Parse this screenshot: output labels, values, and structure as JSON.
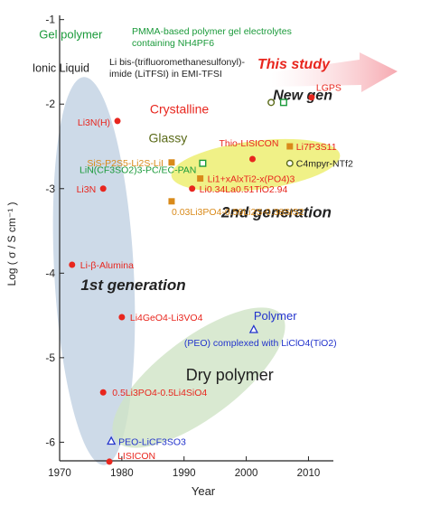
{
  "chart_data": {
    "type": "scatter",
    "xlabel": "Year",
    "ylabel": "Log ( σ / S cm⁻¹ )",
    "xlim": [
      1970,
      2014
    ],
    "ylim": [
      -6.22,
      -0.95
    ],
    "xticks": [
      1970,
      1980,
      1990,
      2000,
      2010
    ],
    "yticks": [
      -1,
      -2,
      -3,
      -4,
      -5,
      -6
    ],
    "grid": false,
    "colors": {
      "red": "#e8261e",
      "orange": "#d98a1a",
      "green": "#1a9a3a",
      "olive": "#5a6a18",
      "blue": "#2233cc",
      "dark": "#222222",
      "ellipse_blue": "#c4d4e4",
      "ellipse_green": "#cfe3c6",
      "ellipse_yellow": "#eef07a",
      "arrow": "#f5a0a8"
    },
    "region_labels": [
      {
        "key": "gel",
        "text": "Gel polymer",
        "x": 1966.7,
        "y": -1.22,
        "color": "green"
      },
      {
        "key": "ionic",
        "text": "Ionic Liquid",
        "x": 1965.6,
        "y": -1.62,
        "color": "dark"
      },
      {
        "key": "crystalline",
        "text": "Crystalline",
        "x": 1984.5,
        "y": -2.11,
        "color": "red"
      },
      {
        "key": "glassy",
        "text": "Glassy",
        "x": 1984.3,
        "y": -2.45,
        "color": "olive"
      },
      {
        "key": "first",
        "text": "1st generation",
        "x": 1973.4,
        "y": -4.2,
        "color": "dark"
      },
      {
        "key": "second",
        "text": "2nd generation",
        "x": 1996,
        "y": -3.34,
        "color": "dark"
      },
      {
        "key": "new",
        "text": "New gen",
        "x": 2004.3,
        "y": -1.95,
        "color": "dark"
      },
      {
        "key": "study",
        "text": "This study",
        "x": 2001.8,
        "y": -1.58,
        "color": "red"
      },
      {
        "key": "polymer",
        "text": "Polymer",
        "x": 2001.2,
        "y": -4.55,
        "color": "blue"
      },
      {
        "key": "dry",
        "text": "Dry polymer",
        "x": 1990.3,
        "y": -5.27,
        "color": "dark"
      }
    ],
    "series": [
      {
        "marker": "circle",
        "fill": "red",
        "points": [
          {
            "label": "Li3N(H)",
            "x": 1979.3,
            "y": -2.2
          },
          {
            "label": "Li3N",
            "x": 1977,
            "y": -3.0
          },
          {
            "label": "Li-β-Alumina",
            "x": 1972,
            "y": -3.9
          },
          {
            "label": "Li4GeO4-Li3VO4",
            "x": 1980,
            "y": -4.52
          },
          {
            "label": "0.5Li3PO4-0.5Li4SiO4",
            "x": 1977,
            "y": -5.41
          },
          {
            "label": "LISICON",
            "x": 1978,
            "y": -6.23
          },
          {
            "label": "Thio-LISICON",
            "x": 2001,
            "y": -2.65
          },
          {
            "label": "Li0.34La0.51TiO2.94",
            "x": 1991.3,
            "y": -3.0
          },
          {
            "label": "LGPS",
            "x": 2010.5,
            "y": -1.92
          }
        ]
      },
      {
        "marker": "square",
        "fill": "orange",
        "points": [
          {
            "label": "Li7P3S11",
            "x": 2007,
            "y": -2.5
          },
          {
            "label": "Li1+xAlxTi2-x(PO4)3",
            "x": 1992.6,
            "y": -2.88
          },
          {
            "label": "0.03Li3PO4-0.59Li2S-0.38SiS2",
            "x": 1988,
            "y": -3.15
          },
          {
            "label": "SiS-P2S5-Li2S-LiI",
            "x": 1988,
            "y": -2.69
          }
        ]
      },
      {
        "marker": "open-square",
        "fill": "green",
        "points": [
          {
            "label": "LiN(CF3SO2)3-PC/EC-PAN",
            "x": 1993,
            "y": -2.7
          },
          {
            "label": "PMMA-based polymer gel electrolytes containing NH4PF6",
            "x": 2006,
            "y": -1.98
          }
        ]
      },
      {
        "marker": "open-circle",
        "fill": "olive",
        "points": [
          {
            "label": "C4mpyr-NTf2",
            "x": 2007,
            "y": -2.7
          },
          {
            "label": "Li bis-(trifluoromethanesulfonyl)-imide (LiTFSI) in EMI-TFSI",
            "x": 2004,
            "y": -1.98
          }
        ]
      },
      {
        "marker": "open-triangle",
        "fill": "blue",
        "points": [
          {
            "label": "(PEO) complexed with LiClO4(TiO2)",
            "x": 2001.2,
            "y": -4.67
          },
          {
            "label": "PEO-LiCF3SO3",
            "x": 1978.3,
            "y": -5.99
          }
        ]
      }
    ]
  }
}
